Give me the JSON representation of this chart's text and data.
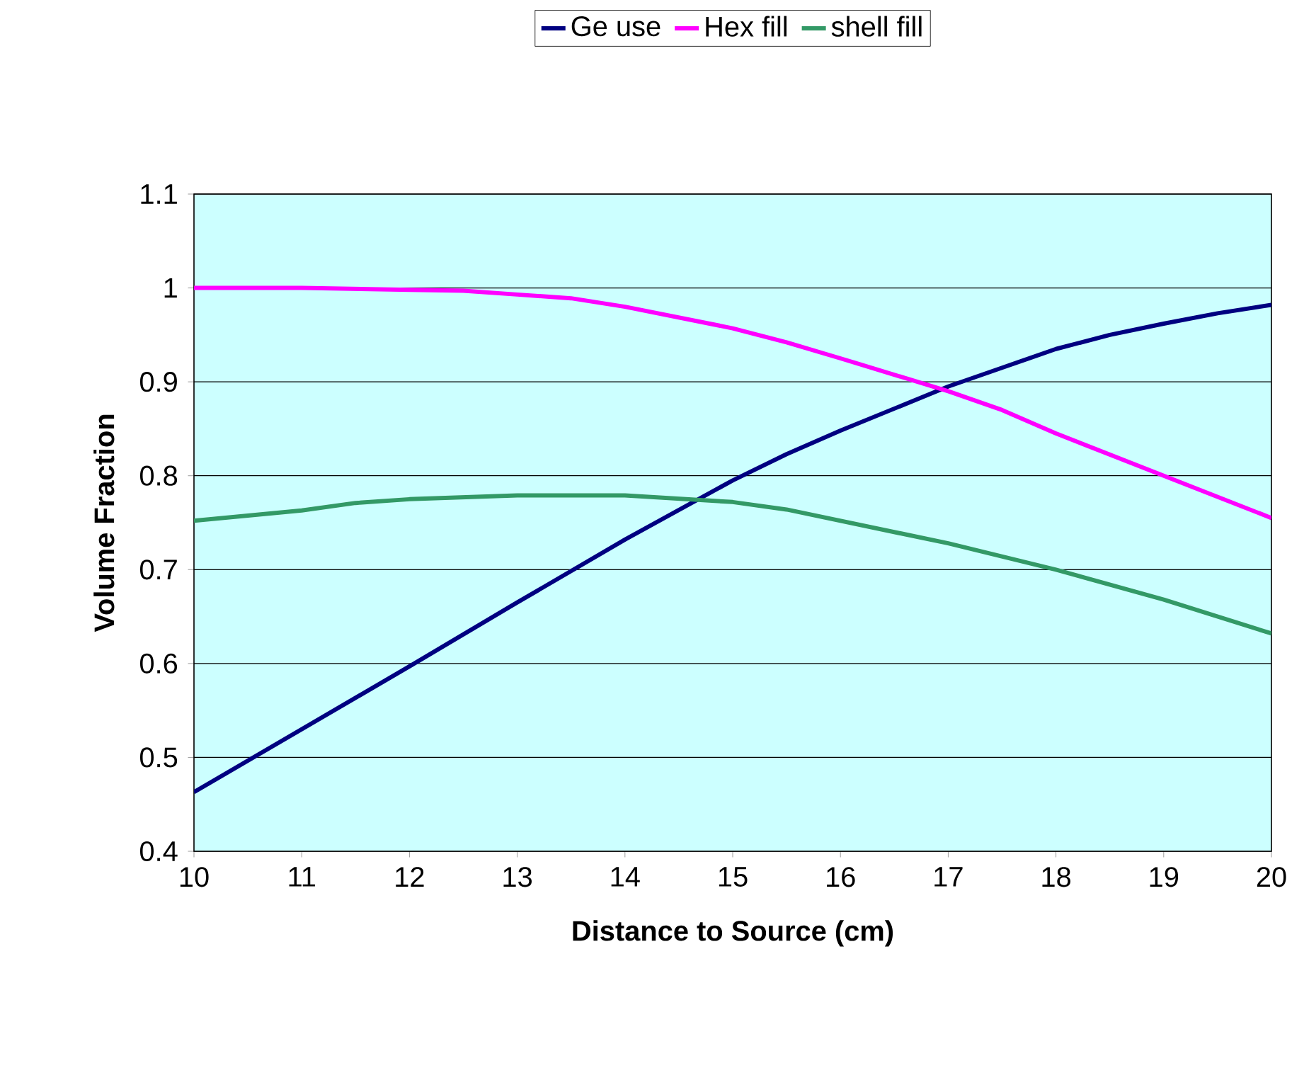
{
  "chart_data": {
    "type": "line",
    "xlabel": "Distance to Source (cm)",
    "ylabel": "Volume Fraction",
    "xlim": [
      10,
      20
    ],
    "ylim": [
      0.4,
      1.1
    ],
    "xticks": [
      10,
      11,
      12,
      13,
      14,
      15,
      16,
      17,
      18,
      19,
      20
    ],
    "yticks": [
      0.4,
      0.5,
      0.6,
      0.7,
      0.8,
      0.9,
      1,
      1.1
    ],
    "grid": "y",
    "legend": "top",
    "marker": "none",
    "line_style": "solid",
    "series": [
      {
        "name": "Ge use",
        "color": "#000080",
        "x": [
          10,
          11,
          12,
          13,
          14,
          15,
          15.5,
          16,
          17,
          17.5,
          18,
          18.5,
          19,
          19.5,
          20
        ],
        "values": [
          0.463,
          0.53,
          0.597,
          0.665,
          0.732,
          0.795,
          0.823,
          0.848,
          0.895,
          0.915,
          0.935,
          0.95,
          0.962,
          0.973,
          0.982
        ]
      },
      {
        "name": "Hex fill",
        "color": "#ff00ff",
        "x": [
          10,
          11,
          12,
          12.5,
          13,
          13.5,
          14,
          15,
          15.5,
          16,
          17,
          17.5,
          18,
          19,
          20
        ],
        "values": [
          1.0,
          1.0,
          0.998,
          0.997,
          0.993,
          0.989,
          0.98,
          0.957,
          0.942,
          0.925,
          0.89,
          0.87,
          0.845,
          0.8,
          0.755
        ]
      },
      {
        "name": "shell fill",
        "color": "#339966",
        "x": [
          10,
          11,
          11.5,
          12,
          13,
          14,
          15,
          15.5,
          16,
          17,
          18,
          19,
          20
        ],
        "values": [
          0.752,
          0.763,
          0.771,
          0.775,
          0.779,
          0.779,
          0.772,
          0.764,
          0.752,
          0.728,
          0.7,
          0.668,
          0.632
        ]
      }
    ]
  }
}
